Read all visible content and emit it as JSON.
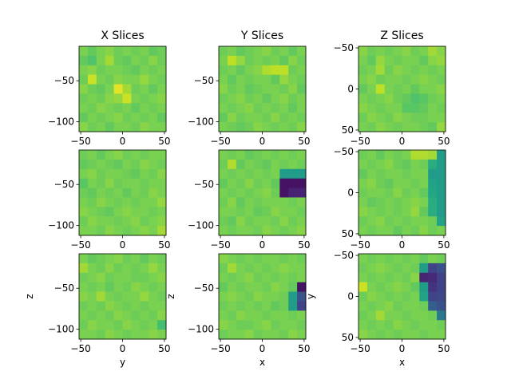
{
  "chart_data": {
    "type": "heatmap",
    "colormap": "viridis",
    "color_range": [
      0,
      1
    ],
    "rows": 3,
    "cols": 3,
    "panels": [
      {
        "row": 0,
        "col": 0,
        "title": "X Slices",
        "xlabel": "",
        "ylabel": "",
        "xlim": [
          -52,
          52
        ],
        "ylim": [
          -112,
          -8
        ],
        "xticks": [
          -50,
          0,
          50
        ],
        "yticks": [
          -50,
          -100
        ],
        "grid": [
          [
            0.8,
            0.76,
            0.8,
            0.82,
            0.78,
            0.8,
            0.78,
            0.8,
            0.76,
            0.78
          ],
          [
            0.76,
            0.72,
            0.8,
            0.86,
            0.78,
            0.76,
            0.8,
            0.78,
            0.82,
            0.78
          ],
          [
            0.8,
            0.82,
            0.78,
            0.8,
            0.8,
            0.78,
            0.76,
            0.8,
            0.78,
            0.8
          ],
          [
            0.78,
            0.92,
            0.8,
            0.78,
            0.82,
            0.8,
            0.8,
            0.84,
            0.8,
            0.78
          ],
          [
            0.82,
            0.78,
            0.76,
            0.8,
            0.96,
            0.86,
            0.78,
            0.8,
            0.76,
            0.8
          ],
          [
            0.78,
            0.8,
            0.78,
            0.82,
            0.84,
            0.92,
            0.8,
            0.78,
            0.8,
            0.82
          ],
          [
            0.8,
            0.78,
            0.82,
            0.8,
            0.78,
            0.8,
            0.76,
            0.8,
            0.78,
            0.8
          ],
          [
            0.76,
            0.8,
            0.78,
            0.8,
            0.82,
            0.78,
            0.8,
            0.78,
            0.8,
            0.76
          ],
          [
            0.82,
            0.78,
            0.8,
            0.76,
            0.8,
            0.8,
            0.78,
            0.82,
            0.8,
            0.8
          ]
        ]
      },
      {
        "row": 0,
        "col": 1,
        "title": "Y Slices",
        "xlabel": "",
        "ylabel": "",
        "xlim": [
          -52,
          52
        ],
        "ylim": [
          -112,
          -8
        ],
        "xticks": [
          -50,
          0,
          50
        ],
        "yticks": [
          -50,
          -100
        ],
        "grid": [
          [
            0.78,
            0.8,
            0.76,
            0.78,
            0.8,
            0.82,
            0.78,
            0.8,
            0.76,
            0.8
          ],
          [
            0.8,
            0.9,
            0.84,
            0.78,
            0.8,
            0.78,
            0.8,
            0.76,
            0.82,
            0.78
          ],
          [
            0.78,
            0.8,
            0.76,
            0.8,
            0.82,
            0.88,
            0.9,
            0.9,
            0.78,
            0.8
          ],
          [
            0.8,
            0.76,
            0.8,
            0.78,
            0.8,
            0.8,
            0.76,
            0.84,
            0.8,
            0.78
          ],
          [
            0.82,
            0.78,
            0.8,
            0.76,
            0.78,
            0.8,
            0.8,
            0.78,
            0.82,
            0.76
          ],
          [
            0.78,
            0.8,
            0.82,
            0.78,
            0.8,
            0.76,
            0.8,
            0.82,
            0.78,
            0.8
          ],
          [
            0.8,
            0.78,
            0.8,
            0.82,
            0.78,
            0.8,
            0.78,
            0.8,
            0.76,
            0.8
          ],
          [
            0.76,
            0.82,
            0.78,
            0.8,
            0.8,
            0.78,
            0.82,
            0.78,
            0.8,
            0.78
          ],
          [
            0.8,
            0.78,
            0.76,
            0.78,
            0.82,
            0.8,
            0.78,
            0.8,
            0.78,
            0.82
          ]
        ]
      },
      {
        "row": 0,
        "col": 2,
        "title": "Z Slices",
        "xlabel": "",
        "ylabel": "",
        "xlim": [
          -52,
          52
        ],
        "ylim": [
          52,
          -52
        ],
        "xticks": [
          -50,
          0,
          50
        ],
        "yticks": [
          -50,
          0,
          50
        ],
        "grid": [
          [
            0.82,
            0.78,
            0.8,
            0.78,
            0.8,
            0.82,
            0.78,
            0.8,
            0.86,
            0.82
          ],
          [
            0.8,
            0.76,
            0.84,
            0.8,
            0.78,
            0.8,
            0.8,
            0.76,
            0.82,
            0.84
          ],
          [
            0.78,
            0.8,
            0.86,
            0.78,
            0.82,
            0.8,
            0.78,
            0.8,
            0.78,
            0.8
          ],
          [
            0.8,
            0.82,
            0.78,
            0.8,
            0.8,
            0.78,
            0.8,
            0.82,
            0.8,
            0.78
          ],
          [
            0.76,
            0.8,
            0.9,
            0.8,
            0.78,
            0.8,
            0.76,
            0.8,
            0.8,
            0.82
          ],
          [
            0.8,
            0.78,
            0.8,
            0.82,
            0.78,
            0.76,
            0.72,
            0.74,
            0.78,
            0.8
          ],
          [
            0.82,
            0.8,
            0.78,
            0.8,
            0.8,
            0.74,
            0.74,
            0.76,
            0.8,
            0.78
          ],
          [
            0.78,
            0.82,
            0.8,
            0.78,
            0.82,
            0.8,
            0.78,
            0.78,
            0.8,
            0.8
          ],
          [
            0.8,
            0.78,
            0.82,
            0.8,
            0.78,
            0.8,
            0.8,
            0.78,
            0.76,
            0.84
          ]
        ]
      },
      {
        "row": 1,
        "col": 0,
        "title": "",
        "xlabel": "",
        "ylabel": "",
        "xlim": [
          -52,
          52
        ],
        "ylim": [
          -112,
          -8
        ],
        "xticks": [
          -50,
          0,
          50
        ],
        "yticks": [
          -50,
          -100
        ],
        "grid": [
          [
            0.78,
            0.8,
            0.76,
            0.8,
            0.82,
            0.78,
            0.8,
            0.78,
            0.8,
            0.8
          ],
          [
            0.76,
            0.78,
            0.8,
            0.78,
            0.76,
            0.8,
            0.78,
            0.82,
            0.8,
            0.78
          ],
          [
            0.8,
            0.82,
            0.78,
            0.8,
            0.8,
            0.78,
            0.76,
            0.8,
            0.78,
            0.82
          ],
          [
            0.74,
            0.8,
            0.78,
            0.82,
            0.78,
            0.8,
            0.8,
            0.78,
            0.8,
            0.8
          ],
          [
            0.78,
            0.76,
            0.8,
            0.78,
            0.8,
            0.76,
            0.8,
            0.78,
            0.82,
            0.8
          ],
          [
            0.8,
            0.78,
            0.82,
            0.8,
            0.78,
            0.8,
            0.78,
            0.8,
            0.8,
            0.84
          ],
          [
            0.82,
            0.8,
            0.78,
            0.76,
            0.8,
            0.82,
            0.8,
            0.8,
            0.78,
            0.8
          ],
          [
            0.78,
            0.82,
            0.8,
            0.8,
            0.78,
            0.8,
            0.82,
            0.78,
            0.8,
            0.82
          ],
          [
            0.8,
            0.8,
            0.78,
            0.82,
            0.8,
            0.78,
            0.8,
            0.82,
            0.8,
            0.86
          ]
        ]
      },
      {
        "row": 1,
        "col": 1,
        "title": "",
        "xlabel": "",
        "ylabel": "",
        "xlim": [
          -52,
          52
        ],
        "ylim": [
          -112,
          -8
        ],
        "xticks": [
          -50,
          0,
          50
        ],
        "yticks": [
          -50,
          -100
        ],
        "grid": [
          [
            0.8,
            0.78,
            0.8,
            0.76,
            0.78,
            0.8,
            0.78,
            0.8,
            0.78,
            0.8
          ],
          [
            0.78,
            0.88,
            0.76,
            0.8,
            0.78,
            0.76,
            0.8,
            0.78,
            0.8,
            0.78
          ],
          [
            0.8,
            0.78,
            0.8,
            0.78,
            0.8,
            0.78,
            0.8,
            0.55,
            0.55,
            0.55
          ],
          [
            0.76,
            0.8,
            0.78,
            0.82,
            0.78,
            0.8,
            0.76,
            0.05,
            0.05,
            0.05
          ],
          [
            0.8,
            0.78,
            0.8,
            0.78,
            0.8,
            0.82,
            0.78,
            0.05,
            0.1,
            0.1
          ],
          [
            0.78,
            0.82,
            0.76,
            0.8,
            0.78,
            0.8,
            0.8,
            0.8,
            0.78,
            0.8
          ],
          [
            0.8,
            0.8,
            0.78,
            0.8,
            0.76,
            0.78,
            0.82,
            0.8,
            0.8,
            0.78
          ],
          [
            0.78,
            0.76,
            0.82,
            0.78,
            0.8,
            0.8,
            0.78,
            0.82,
            0.78,
            0.8
          ],
          [
            0.8,
            0.78,
            0.8,
            0.8,
            0.78,
            0.82,
            0.8,
            0.78,
            0.8,
            0.82
          ]
        ]
      },
      {
        "row": 1,
        "col": 2,
        "title": "",
        "xlabel": "",
        "ylabel": "",
        "xlim": [
          -52,
          52
        ],
        "ylim": [
          52,
          -52
        ],
        "xticks": [
          -50,
          0,
          50
        ],
        "yticks": [
          -50,
          0,
          50
        ],
        "grid": [
          [
            0.78,
            0.8,
            0.76,
            0.8,
            0.78,
            0.8,
            0.88,
            0.88,
            0.86,
            0.55
          ],
          [
            0.8,
            0.78,
            0.8,
            0.82,
            0.78,
            0.76,
            0.8,
            0.78,
            0.62,
            0.55
          ],
          [
            0.76,
            0.8,
            0.78,
            0.8,
            0.8,
            0.78,
            0.8,
            0.8,
            0.55,
            0.55
          ],
          [
            0.8,
            0.82,
            0.78,
            0.76,
            0.8,
            0.8,
            0.78,
            0.8,
            0.58,
            0.55
          ],
          [
            0.78,
            0.8,
            0.8,
            0.78,
            0.82,
            0.78,
            0.8,
            0.76,
            0.6,
            0.55
          ],
          [
            0.8,
            0.76,
            0.78,
            0.8,
            0.78,
            0.8,
            0.82,
            0.8,
            0.62,
            0.55
          ],
          [
            0.82,
            0.8,
            0.78,
            0.8,
            0.78,
            0.8,
            0.84,
            0.76,
            0.62,
            0.55
          ],
          [
            0.78,
            0.8,
            0.82,
            0.78,
            0.8,
            0.78,
            0.8,
            0.8,
            0.78,
            0.58
          ],
          [
            0.8,
            0.78,
            0.8,
            0.8,
            0.76,
            0.8,
            0.78,
            0.82,
            0.78,
            0.8
          ]
        ]
      },
      {
        "row": 2,
        "col": 0,
        "title": "",
        "xlabel": "y",
        "ylabel": "z",
        "xlim": [
          -52,
          52
        ],
        "ylim": [
          -112,
          -8
        ],
        "xticks": [
          -50,
          0,
          50
        ],
        "yticks": [
          -50,
          -100
        ],
        "grid": [
          [
            0.8,
            0.76,
            0.78,
            0.8,
            0.82,
            0.78,
            0.8,
            0.76,
            0.8,
            0.78
          ],
          [
            0.86,
            0.8,
            0.78,
            0.82,
            0.78,
            0.8,
            0.78,
            0.8,
            0.84,
            0.8
          ],
          [
            0.78,
            0.8,
            0.82,
            0.78,
            0.8,
            0.8,
            0.78,
            0.78,
            0.8,
            0.82
          ],
          [
            0.8,
            0.78,
            0.8,
            0.76,
            0.8,
            0.78,
            0.82,
            0.8,
            0.78,
            0.8
          ],
          [
            0.82,
            0.8,
            0.86,
            0.8,
            0.78,
            0.8,
            0.8,
            0.84,
            0.8,
            0.78
          ],
          [
            0.78,
            0.8,
            0.78,
            0.82,
            0.8,
            0.78,
            0.8,
            0.78,
            0.8,
            0.8
          ],
          [
            0.8,
            0.78,
            0.8,
            0.78,
            0.82,
            0.8,
            0.78,
            0.8,
            0.78,
            0.82
          ],
          [
            0.78,
            0.82,
            0.8,
            0.8,
            0.78,
            0.82,
            0.8,
            0.78,
            0.8,
            0.7
          ],
          [
            0.8,
            0.8,
            0.78,
            0.82,
            0.8,
            0.78,
            0.8,
            0.8,
            0.82,
            0.8
          ]
        ]
      },
      {
        "row": 2,
        "col": 1,
        "title": "",
        "xlabel": "x",
        "ylabel": "z",
        "xlim": [
          -52,
          52
        ],
        "ylim": [
          -112,
          -8
        ],
        "xticks": [
          -50,
          0,
          50
        ],
        "yticks": [
          -50,
          -100
        ],
        "grid": [
          [
            0.82,
            0.8,
            0.78,
            0.8,
            0.78,
            0.8,
            0.8,
            0.78,
            0.8,
            0.78
          ],
          [
            0.78,
            0.86,
            0.8,
            0.78,
            0.8,
            0.78,
            0.8,
            0.82,
            0.8,
            0.8
          ],
          [
            0.8,
            0.78,
            0.8,
            0.82,
            0.78,
            0.8,
            0.78,
            0.8,
            0.78,
            0.8
          ],
          [
            0.76,
            0.8,
            0.78,
            0.8,
            0.8,
            0.78,
            0.82,
            0.8,
            0.76,
            0.05
          ],
          [
            0.8,
            0.82,
            0.8,
            0.78,
            0.82,
            0.8,
            0.8,
            0.78,
            0.55,
            0.25
          ],
          [
            0.78,
            0.8,
            0.78,
            0.8,
            0.78,
            0.8,
            0.76,
            0.78,
            0.55,
            0.2
          ],
          [
            0.8,
            0.78,
            0.82,
            0.8,
            0.8,
            0.78,
            0.8,
            0.8,
            0.78,
            0.8
          ],
          [
            0.82,
            0.8,
            0.78,
            0.78,
            0.8,
            0.82,
            0.78,
            0.8,
            0.8,
            0.78
          ],
          [
            0.78,
            0.8,
            0.8,
            0.82,
            0.78,
            0.8,
            0.8,
            0.78,
            0.82,
            0.8
          ]
        ]
      },
      {
        "row": 2,
        "col": 2,
        "title": "",
        "xlabel": "x",
        "ylabel": "y",
        "xlim": [
          -52,
          52
        ],
        "ylim": [
          52,
          -52
        ],
        "xticks": [
          -50,
          0,
          50
        ],
        "yticks": [
          -50,
          0,
          50
        ],
        "grid": [
          [
            0.8,
            0.78,
            0.8,
            0.78,
            0.8,
            0.78,
            0.8,
            0.76,
            0.8,
            0.78
          ],
          [
            0.78,
            0.8,
            0.82,
            0.8,
            0.78,
            0.8,
            0.78,
            0.55,
            0.2,
            0.25
          ],
          [
            0.8,
            0.78,
            0.8,
            0.78,
            0.8,
            0.78,
            0.82,
            0.1,
            0.12,
            0.2
          ],
          [
            0.92,
            0.8,
            0.78,
            0.8,
            0.82,
            0.8,
            0.76,
            0.55,
            0.15,
            0.2
          ],
          [
            0.78,
            0.82,
            0.8,
            0.78,
            0.8,
            0.78,
            0.8,
            0.58,
            0.2,
            0.22
          ],
          [
            0.8,
            0.78,
            0.8,
            0.82,
            0.78,
            0.8,
            0.8,
            0.78,
            0.3,
            0.25
          ],
          [
            0.78,
            0.8,
            0.86,
            0.8,
            0.8,
            0.78,
            0.8,
            0.8,
            0.78,
            0.4
          ],
          [
            0.8,
            0.78,
            0.8,
            0.78,
            0.82,
            0.8,
            0.78,
            0.8,
            0.8,
            0.78
          ],
          [
            0.82,
            0.8,
            0.78,
            0.8,
            0.78,
            0.8,
            0.8,
            0.78,
            0.8,
            0.8
          ]
        ]
      }
    ]
  }
}
